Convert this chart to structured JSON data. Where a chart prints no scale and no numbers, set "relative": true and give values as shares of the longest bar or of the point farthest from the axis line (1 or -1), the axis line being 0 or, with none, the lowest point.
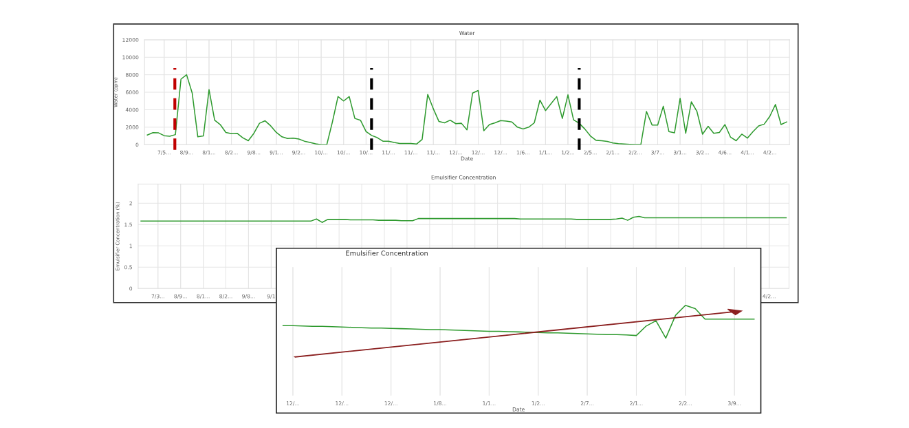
{
  "chart_data": [
    {
      "type": "line",
      "title": "Water",
      "xlabel": "Date",
      "ylabel": "Water (ppm)",
      "grid": true,
      "marker": "none",
      "line_style": "solid",
      "ylim": [
        0,
        12000
      ],
      "yticks": [
        0,
        2000,
        4000,
        6000,
        8000,
        10000,
        12000
      ],
      "categories": [
        null,
        null,
        null,
        "7/5...",
        null,
        null,
        null,
        "8/9...",
        null,
        null,
        null,
        "8/1...",
        null,
        null,
        null,
        "8/2...",
        null,
        null,
        null,
        "9/8...",
        null,
        null,
        null,
        "9/1...",
        null,
        null,
        null,
        "9/2...",
        null,
        null,
        null,
        "10/...",
        null,
        null,
        null,
        "10/...",
        null,
        null,
        null,
        "10/...",
        null,
        null,
        null,
        "11/...",
        null,
        null,
        null,
        "11/...",
        null,
        null,
        null,
        "11/...",
        null,
        null,
        null,
        "12/...",
        null,
        null,
        null,
        "12/...",
        null,
        null,
        null,
        "12/...",
        null,
        null,
        null,
        "1/6...",
        null,
        null,
        null,
        "1/1...",
        null,
        null,
        null,
        "1/2...",
        null,
        null,
        null,
        "2/5...",
        null,
        null,
        null,
        "2/1...",
        null,
        null,
        null,
        "2/2...",
        null,
        null,
        null,
        "3/7...",
        null,
        null,
        null,
        "3/1...",
        null,
        null,
        null,
        "3/2...",
        null,
        null,
        null,
        "4/6...",
        null,
        null,
        null,
        "4/1...",
        null,
        null,
        null,
        "4/2...",
        null,
        null,
        null
      ],
      "series": [
        {
          "color": "#2e9a2e",
          "values": [
            1100,
            1380,
            1350,
            1030,
            960,
            1150,
            7500,
            8000,
            5900,
            900,
            1000,
            6300,
            2800,
            2300,
            1400,
            1250,
            1300,
            800,
            450,
            1300,
            2450,
            2730,
            2150,
            1400,
            900,
            700,
            750,
            650,
            400,
            250,
            100,
            0,
            0,
            2600,
            5500,
            5000,
            5500,
            3000,
            2800,
            1500,
            1050,
            800,
            400,
            400,
            250,
            130,
            130,
            130,
            70,
            600,
            5750,
            4100,
            2650,
            2500,
            2800,
            2400,
            2450,
            1700,
            5900,
            6200,
            1600,
            2300,
            2500,
            2750,
            2700,
            2600,
            2000,
            1800,
            2000,
            2500,
            5100,
            3900,
            4700,
            5500,
            3000,
            5700,
            2850,
            2450,
            1800,
            1000,
            500,
            460,
            380,
            200,
            110,
            70,
            40,
            20,
            10,
            3800,
            2250,
            2250,
            4400,
            1500,
            1350,
            5300,
            1300,
            4900,
            3800,
            1200,
            2100,
            1300,
            1400,
            2300,
            850,
            450,
            1200,
            750,
            1500,
            2150,
            2350,
            3250,
            4600,
            2300,
            2600
          ]
        }
      ]
    },
    {
      "type": "line",
      "title": "Emulsifier Concentration",
      "ylabel": "Emulsifier Concentration (%)",
      "grid": true,
      "marker": "none",
      "line_style": "solid",
      "ylim": [
        0,
        2.45
      ],
      "yticks": [
        0,
        0.5,
        1,
        1.5,
        2
      ],
      "categories": [
        null,
        null,
        null,
        "7/3...",
        null,
        null,
        null,
        "8/9...",
        null,
        null,
        null,
        "8/1...",
        null,
        null,
        null,
        "8/2...",
        null,
        null,
        null,
        "9/8...",
        null,
        null,
        null,
        "9/1",
        null,
        null,
        null,
        null,
        null,
        null,
        null,
        null,
        null,
        null,
        null,
        null,
        null,
        null,
        null,
        null,
        null,
        null,
        null,
        null,
        null,
        null,
        null,
        null,
        null,
        null,
        null,
        null,
        null,
        null,
        null,
        null,
        null,
        null,
        null,
        null,
        null,
        null,
        null,
        null,
        null,
        null,
        null,
        null,
        null,
        null,
        null,
        null,
        null,
        null,
        null,
        null,
        null,
        null,
        null,
        null,
        null,
        null,
        null,
        null,
        null,
        null,
        null,
        null,
        null,
        null,
        null,
        null,
        null,
        null,
        null,
        null,
        null,
        null,
        null,
        null,
        null,
        null,
        null,
        null,
        null,
        null,
        null,
        null,
        null,
        null,
        null,
        "4/2...",
        null,
        null,
        null
      ],
      "series": [
        {
          "color": "#2e9a2e",
          "values": [
            1.58,
            1.58,
            1.58,
            1.58,
            1.58,
            1.58,
            1.58,
            1.58,
            1.58,
            1.58,
            1.58,
            1.58,
            1.58,
            1.58,
            1.58,
            1.58,
            1.58,
            1.58,
            1.58,
            1.58,
            1.58,
            1.58,
            1.58,
            1.58,
            1.58,
            1.58,
            1.58,
            1.58,
            1.58,
            1.58,
            1.58,
            1.63,
            1.55,
            1.62,
            1.62,
            1.62,
            1.62,
            1.61,
            1.61,
            1.61,
            1.61,
            1.61,
            1.6,
            1.6,
            1.6,
            1.6,
            1.59,
            1.59,
            1.59,
            1.64,
            1.64,
            1.64,
            1.64,
            1.64,
            1.64,
            1.64,
            1.64,
            1.64,
            1.64,
            1.64,
            1.64,
            1.64,
            1.64,
            1.64,
            1.64,
            1.64,
            1.64,
            1.63,
            1.63,
            1.63,
            1.63,
            1.63,
            1.63,
            1.63,
            1.63,
            1.63,
            1.63,
            1.62,
            1.62,
            1.62,
            1.62,
            1.62,
            1.62,
            1.62,
            1.63,
            1.65,
            1.6,
            1.67,
            1.69,
            1.66,
            1.66,
            1.66,
            1.66,
            1.66,
            1.66,
            1.66,
            1.66,
            1.66,
            1.66,
            1.66,
            1.66,
            1.66,
            1.66,
            1.66,
            1.66,
            1.66,
            1.66,
            1.66,
            1.66,
            1.66,
            1.66,
            1.66,
            1.66,
            1.66,
            1.66
          ]
        }
      ]
    },
    {
      "type": "line",
      "title": "Emulsifier Concentration",
      "xlabel": "Date",
      "relative": true,
      "grid": "x",
      "marker": "none",
      "line_style": "solid",
      "categories": [
        null,
        "12/...",
        null,
        null,
        null,
        null,
        "12/...",
        null,
        null,
        null,
        null,
        "12/...",
        null,
        null,
        null,
        null,
        "1/8...",
        null,
        null,
        null,
        null,
        "1/1...",
        null,
        null,
        null,
        null,
        "1/2...",
        null,
        null,
        null,
        null,
        "2/7...",
        null,
        null,
        null,
        null,
        "2/1...",
        null,
        null,
        null,
        null,
        "2/2...",
        null,
        null,
        null,
        null,
        "3/9...",
        null,
        null
      ],
      "series": [
        {
          "color": "#2e9a2e",
          "values": [
            0.38,
            0.38,
            0.37,
            0.36,
            0.36,
            0.35,
            0.34,
            0.33,
            0.32,
            0.31,
            0.31,
            0.3,
            0.29,
            0.28,
            0.27,
            0.26,
            0.26,
            0.25,
            0.24,
            0.23,
            0.22,
            0.21,
            0.21,
            0.2,
            0.19,
            0.18,
            0.17,
            0.16,
            0.16,
            0.15,
            0.14,
            0.13,
            0.12,
            0.11,
            0.11,
            0.1,
            0.08,
            0.37,
            0.53,
            0,
            0.7,
            1,
            0.9,
            0.58,
            0.58,
            0.58,
            0.58,
            0.58,
            0.58
          ]
        }
      ]
    }
  ]
}
